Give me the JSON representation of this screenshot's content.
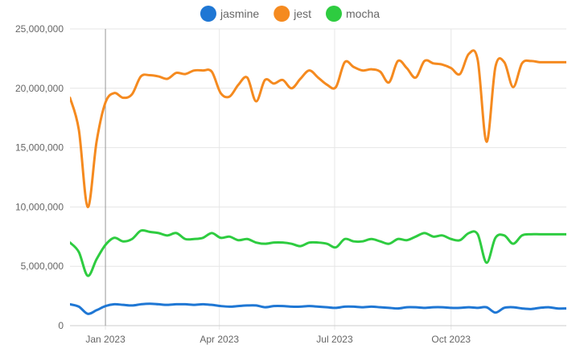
{
  "chart_data": {
    "type": "line",
    "title": "",
    "xlabel": "",
    "ylabel": "",
    "ylim": [
      0,
      25000000
    ],
    "yticks": [
      0,
      5000000,
      10000000,
      15000000,
      20000000,
      25000000
    ],
    "ytick_labels": [
      "0",
      "5,000,000",
      "10,000,000",
      "15,000,000",
      "20,000,000",
      "25,000,000"
    ],
    "xlim": [
      "2022-12-04",
      "2023-12-31"
    ],
    "xticks": [
      "2023-01-01",
      "2023-04-01",
      "2023-07-01",
      "2023-10-01"
    ],
    "xtick_labels": [
      "Jan 2023",
      "Apr 2023",
      "Jul 2023",
      "Oct 2023"
    ],
    "hover_x": "2023-01-01",
    "grid": true,
    "legend": "top-center",
    "x": [
      "2022-12-04",
      "2022-12-11",
      "2022-12-18",
      "2022-12-25",
      "2023-01-01",
      "2023-01-08",
      "2023-01-15",
      "2023-01-22",
      "2023-01-29",
      "2023-02-05",
      "2023-02-12",
      "2023-02-19",
      "2023-02-26",
      "2023-03-05",
      "2023-03-12",
      "2023-03-19",
      "2023-03-26",
      "2023-04-02",
      "2023-04-09",
      "2023-04-16",
      "2023-04-23",
      "2023-04-30",
      "2023-05-07",
      "2023-05-14",
      "2023-05-21",
      "2023-05-28",
      "2023-06-04",
      "2023-06-11",
      "2023-06-18",
      "2023-06-25",
      "2023-07-02",
      "2023-07-09",
      "2023-07-16",
      "2023-07-23",
      "2023-07-30",
      "2023-08-06",
      "2023-08-13",
      "2023-08-20",
      "2023-08-27",
      "2023-09-03",
      "2023-09-10",
      "2023-09-17",
      "2023-09-24",
      "2023-10-01",
      "2023-10-08",
      "2023-10-15",
      "2023-10-22",
      "2023-10-29",
      "2023-11-05",
      "2023-11-12",
      "2023-11-19",
      "2023-11-26",
      "2023-12-03",
      "2023-12-10",
      "2023-12-17",
      "2023-12-24",
      "2023-12-31"
    ],
    "series": [
      {
        "name": "jasmine",
        "color": "#1f77d4",
        "values": [
          1800000,
          1600000,
          1000000,
          1300000,
          1650000,
          1800000,
          1750000,
          1700000,
          1800000,
          1850000,
          1800000,
          1750000,
          1800000,
          1800000,
          1750000,
          1800000,
          1750000,
          1650000,
          1600000,
          1650000,
          1700000,
          1700000,
          1550000,
          1650000,
          1650000,
          1600000,
          1600000,
          1650000,
          1600000,
          1550000,
          1500000,
          1600000,
          1600000,
          1550000,
          1600000,
          1550000,
          1500000,
          1450000,
          1550000,
          1550000,
          1500000,
          1550000,
          1550000,
          1500000,
          1500000,
          1550000,
          1500000,
          1550000,
          1100000,
          1500000,
          1550000,
          1450000,
          1400000,
          1500000,
          1550000,
          1450000,
          1450000
        ]
      },
      {
        "name": "jest",
        "color": "#f58a1f",
        "values": [
          19200000,
          16500000,
          10000000,
          15500000,
          18800000,
          19600000,
          19200000,
          19500000,
          21000000,
          21100000,
          21000000,
          20800000,
          21300000,
          21200000,
          21500000,
          21500000,
          21400000,
          19600000,
          19300000,
          20300000,
          20900000,
          18900000,
          20700000,
          20400000,
          20700000,
          20000000,
          20800000,
          21500000,
          20900000,
          20300000,
          20100000,
          22200000,
          21800000,
          21500000,
          21600000,
          21400000,
          20500000,
          22300000,
          21700000,
          20900000,
          22300000,
          22100000,
          22000000,
          21700000,
          21200000,
          22900000,
          22400000,
          15500000,
          21800000,
          22200000,
          20100000,
          22100000,
          22300000,
          22200000,
          22200000,
          22200000,
          22200000
        ]
      },
      {
        "name": "mocha",
        "color": "#2ecc40",
        "values": [
          7000000,
          6200000,
          4200000,
          5600000,
          6800000,
          7400000,
          7100000,
          7300000,
          8000000,
          7900000,
          7800000,
          7600000,
          7800000,
          7300000,
          7300000,
          7400000,
          7800000,
          7400000,
          7500000,
          7200000,
          7300000,
          7000000,
          6900000,
          7000000,
          7000000,
          6900000,
          6700000,
          7000000,
          7000000,
          6900000,
          6600000,
          7300000,
          7100000,
          7100000,
          7300000,
          7100000,
          6900000,
          7300000,
          7200000,
          7500000,
          7800000,
          7500000,
          7600000,
          7300000,
          7200000,
          7800000,
          7700000,
          5300000,
          7400000,
          7600000,
          6900000,
          7600000,
          7700000,
          7700000,
          7700000,
          7700000,
          7700000
        ]
      }
    ]
  }
}
